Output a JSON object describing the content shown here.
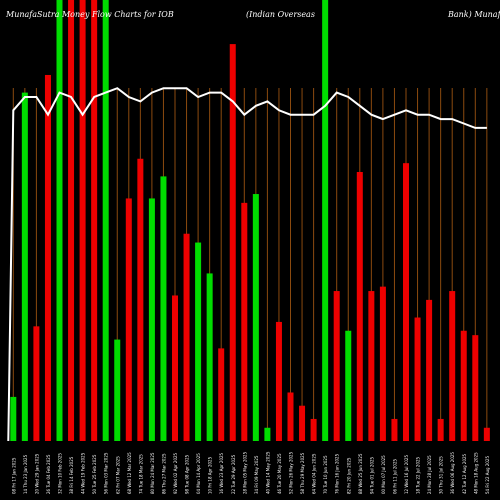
{
  "chart_data": {
    "type": "bar",
    "title_parts": [
      "MunafaSutra Money Flow  Charts for IOB",
      "(Indian  Overseas",
      "Bank) MunafaSutra.com"
    ],
    "bar_values": [
      0.1,
      0.79,
      0.26,
      0.83,
      1.0,
      1.0,
      1.0,
      1.0,
      1.0,
      0.23,
      0.55,
      0.64,
      0.55,
      0.6,
      0.33,
      0.47,
      0.45,
      0.38,
      0.21,
      0.9,
      0.54,
      0.56,
      0.03,
      0.27,
      0.11,
      0.08,
      0.05,
      1.0,
      0.34,
      0.25,
      0.61,
      0.34,
      0.35,
      0.05,
      0.63,
      0.28,
      0.32,
      0.05,
      0.34,
      0.25,
      0.24,
      0.03
    ],
    "bar_colors": [
      "green",
      "green",
      "red",
      "red",
      "green",
      "red",
      "red",
      "red",
      "green",
      "green",
      "red",
      "red",
      "green",
      "green",
      "red",
      "red",
      "green",
      "green",
      "red",
      "red",
      "red",
      "green",
      "green",
      "red",
      "red",
      "red",
      "red",
      "green",
      "red",
      "green",
      "red",
      "red",
      "red",
      "red",
      "red",
      "red",
      "red",
      "red",
      "red",
      "red",
      "red",
      "red"
    ],
    "line_values": [
      0.75,
      0.78,
      0.78,
      0.74,
      0.79,
      0.78,
      0.74,
      0.78,
      0.79,
      0.8,
      0.78,
      0.77,
      0.79,
      0.8,
      0.8,
      0.8,
      0.78,
      0.79,
      0.79,
      0.77,
      0.74,
      0.76,
      0.77,
      0.75,
      0.74,
      0.74,
      0.74,
      0.76,
      0.79,
      0.78,
      0.76,
      0.74,
      0.73,
      0.74,
      0.75,
      0.74,
      0.74,
      0.73,
      0.73,
      0.72,
      0.71,
      0.71
    ],
    "x_labels": [
      "08 Fri 17 Jan 2025",
      "14 Thu 23 Jan 2025",
      "20 Wed 29 Jan 2025",
      "26 Tue 04 Feb 2025",
      "32 Mon 10 Feb 2025",
      "38 Fri 14 Feb 2025",
      "44 Wed 19 Feb 2025",
      "50 Tue 25 Feb 2025",
      "56 Mon 03 Mar 2025",
      "62 Fri 07 Mar 2025",
      "68 Wed 12 Mar 2025",
      "74 Tue 18 Mar 2025",
      "80 Mon 24 Mar 2025",
      "86 Thu 27 Mar 2025",
      "92 Wed 02 Apr 2025",
      "98 Tue 08 Apr 2025",
      "04 Mon 14 Apr 2025",
      "10 Fri 18 Apr 2025",
      "16 Wed 23 Apr 2025",
      "22 Tue 29 Apr 2025",
      "28 Mon 05 May 2025",
      "34 Fri 09 May 2025",
      "40 Wed 14 May 2025",
      "46 Tue 20 May 2025",
      "52 Mon 26 May 2025",
      "58 Thu 29 May 2025",
      "64 Wed 04 Jun 2025",
      "70 Tue 10 Jun 2025",
      "76 Mon 16 Jun 2025",
      "82 Fri 20 Jun 2025",
      "88 Wed 25 Jun 2025",
      "94 Tue 01 Jul 2025",
      "00 Mon 07 Jul 2025",
      "06 Fri 11 Jul 2025",
      "12 Wed 16 Jul 2025",
      "18 Tue 22 Jul 2025",
      "24 Mon 28 Jul 2025",
      "30 Thu 31 Jul 2025",
      "36 Wed 06 Aug 2025",
      "42 Tue 12 Aug 2025",
      "48 Mon 18 Aug 2025",
      "54 Fri 22 Aug 2025"
    ],
    "colors": {
      "background": "#000000",
      "up": "#00dd00",
      "down": "#ee0000",
      "grid": "#8b4a0f",
      "line": "#ffffff",
      "text": "#ffffff"
    },
    "grid": true,
    "legend": "none"
  }
}
